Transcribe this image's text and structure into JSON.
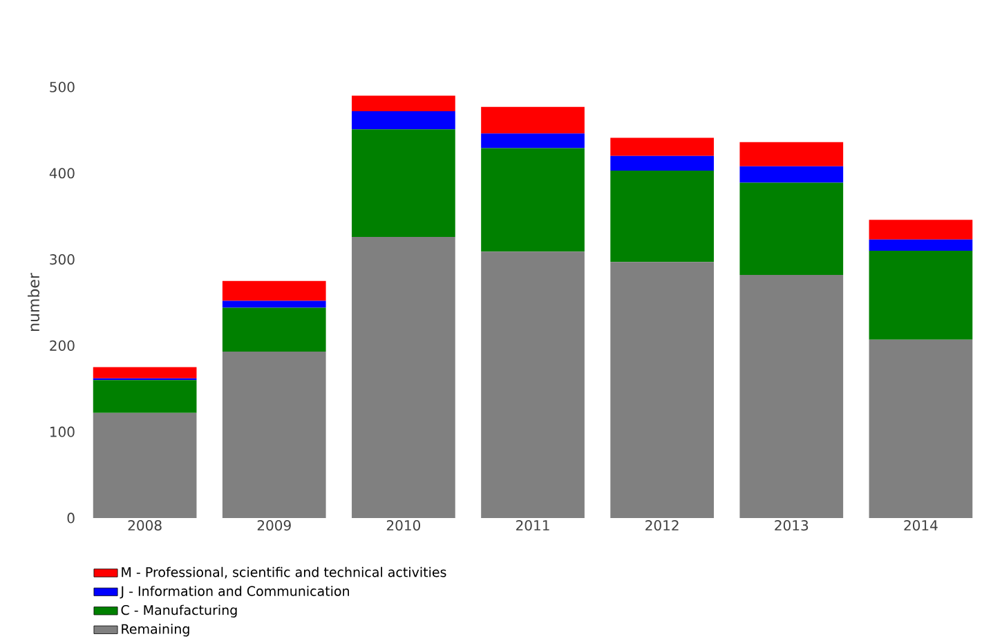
{
  "chart_data": {
    "type": "bar",
    "stacked": true,
    "ylabel": "number",
    "categories": [
      "2008",
      "2009",
      "2010",
      "2011",
      "2012",
      "2013",
      "2014"
    ],
    "ylim": [
      0,
      500
    ],
    "yticks": [
      0,
      100,
      200,
      300,
      400,
      500
    ],
    "grid": false,
    "legend": "bottom left",
    "series": [
      {
        "name": "Remaining",
        "color": "#808080",
        "values": [
          122,
          193,
          326,
          309,
          297,
          282,
          207
        ]
      },
      {
        "name": "C - Manufacturing",
        "color": "#008000",
        "values": [
          38,
          51,
          125,
          120,
          106,
          107,
          103
        ]
      },
      {
        "name": "J -  Information and Communication",
        "color": "#0000ff",
        "values": [
          2,
          8,
          21,
          17,
          17,
          19,
          13
        ]
      },
      {
        "name": "M - Professional, scientific and technical activities",
        "color": "#ff0000",
        "values": [
          13,
          23,
          18,
          31,
          21,
          28,
          23
        ]
      }
    ]
  }
}
